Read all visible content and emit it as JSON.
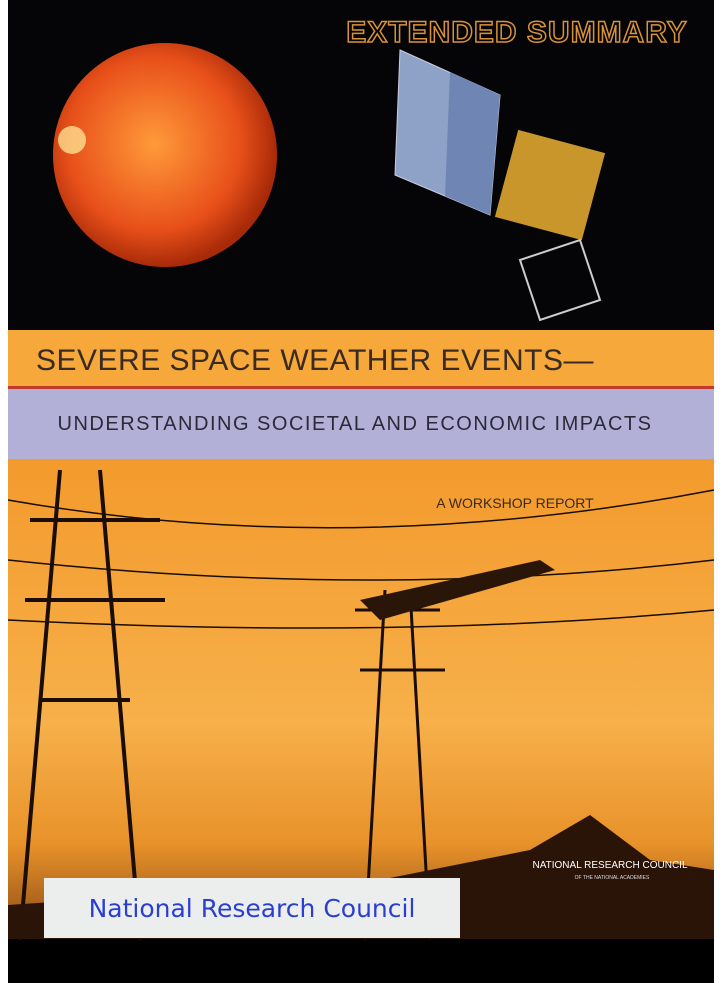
{
  "cover": {
    "label": "EXTENDED SUMMARY",
    "title": "SEVERE SPACE WEATHER EVENTS—",
    "subtitle": "UNDERSTANDING SOCIETAL AND ECONOMIC IMPACTS",
    "report_type": "A WORKSHOP REPORT",
    "publisher": "NATIONAL RESEARCH COUNCIL",
    "publisher_sub": "OF THE NATIONAL ACADEMIES"
  },
  "caption": "National Research Council"
}
